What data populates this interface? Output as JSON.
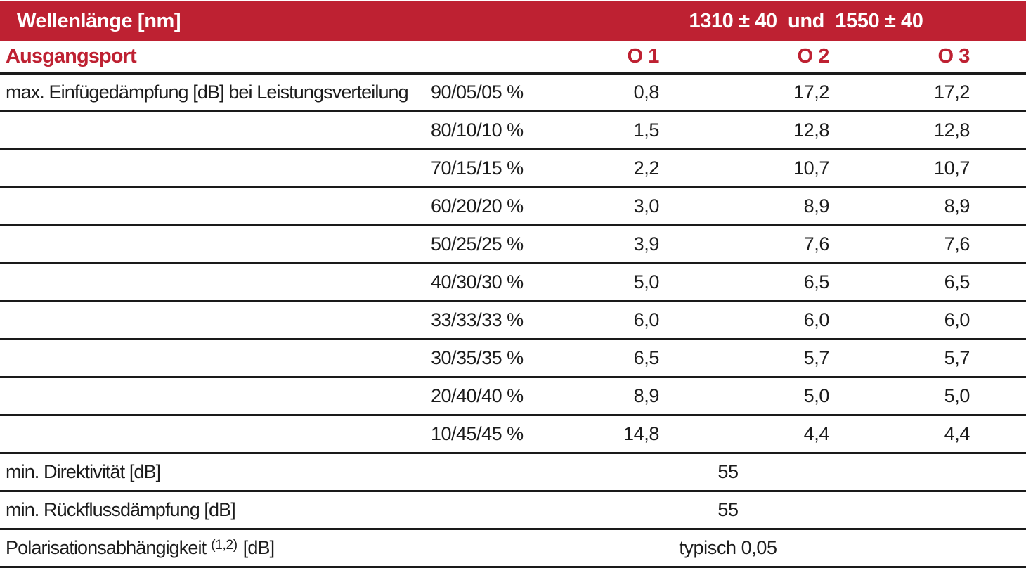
{
  "colors": {
    "accent_red": "#BE2132",
    "border_black": "#1A1A1A",
    "text_color": "#1C1C1C",
    "header_text_white": "#FFFFFF"
  },
  "header": {
    "wavelength_label": "Wellenlänge [nm]",
    "wavelength_value": "1310 ± 40  und  1550 ± 40"
  },
  "ports_row": {
    "label": "Ausgangsport",
    "o1": "O 1",
    "o2": "O 2",
    "o3": "O 3"
  },
  "insertion_loss": {
    "label": "max. Einfügedämpfung [dB] bei Leistungsverteilung",
    "rows": [
      {
        "split": "90/05/05 %",
        "o1": "0,8",
        "o2": "17,2",
        "o3": "17,2"
      },
      {
        "split": "80/10/10 %",
        "o1": "1,5",
        "o2": "12,8",
        "o3": "12,8"
      },
      {
        "split": "70/15/15 %",
        "o1": "2,2",
        "o2": "10,7",
        "o3": "10,7"
      },
      {
        "split": "60/20/20 %",
        "o1": "3,0",
        "o2": "8,9",
        "o3": "8,9"
      },
      {
        "split": "50/25/25 %",
        "o1": "3,9",
        "o2": "7,6",
        "o3": "7,6"
      },
      {
        "split": "40/30/30 %",
        "o1": "5,0",
        "o2": "6,5",
        "o3": "6,5"
      },
      {
        "split": "33/33/33 %",
        "o1": "6,0",
        "o2": "6,0",
        "o3": "6,0"
      },
      {
        "split": "30/35/35 %",
        "o1": "6,5",
        "o2": "5,7",
        "o3": "5,7"
      },
      {
        "split": "20/40/40 %",
        "o1": "8,9",
        "o2": "5,0",
        "o3": "5,0"
      },
      {
        "split": "10/45/45 %",
        "o1": "14,8",
        "o2": "4,4",
        "o3": "4,4"
      }
    ]
  },
  "directivity_row": {
    "label": "min. Direktivität [dB]",
    "value": "55"
  },
  "return_loss_row": {
    "label": "min. Rückflussdämpfung [dB]",
    "value": "55"
  },
  "polarization_row": {
    "label": "Polarisationsabhängigkeit",
    "sup": "(1,2)",
    "unit": "[dB]",
    "value": "typisch 0,05"
  }
}
